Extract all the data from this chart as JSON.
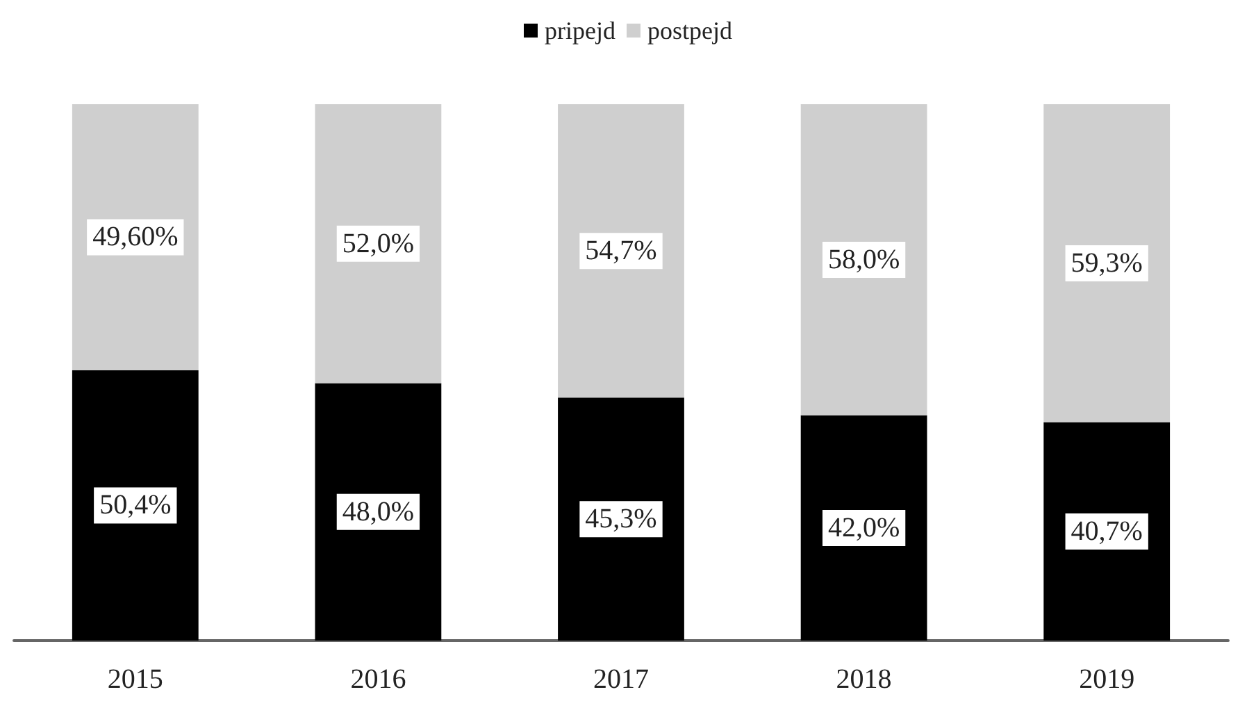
{
  "chart_data": {
    "type": "bar",
    "stacked": true,
    "legend": "top",
    "categories": [
      "2015",
      "2016",
      "2017",
      "2018",
      "2019"
    ],
    "series": [
      {
        "name": "pripejd",
        "color": "#000000",
        "values": [
          50.4,
          48.0,
          45.3,
          42.0,
          40.7
        ],
        "value_labels": [
          "50,4%",
          "48,0%",
          "45,3%",
          "42,0%",
          "40,7%"
        ]
      },
      {
        "name": "postpejd",
        "color": "#cfcfcf",
        "values": [
          49.6,
          52.0,
          54.7,
          58.0,
          59.3
        ],
        "value_labels": [
          "49,60%",
          "52,0%",
          "54,7%",
          "58,0%",
          "59,3%"
        ]
      }
    ]
  }
}
